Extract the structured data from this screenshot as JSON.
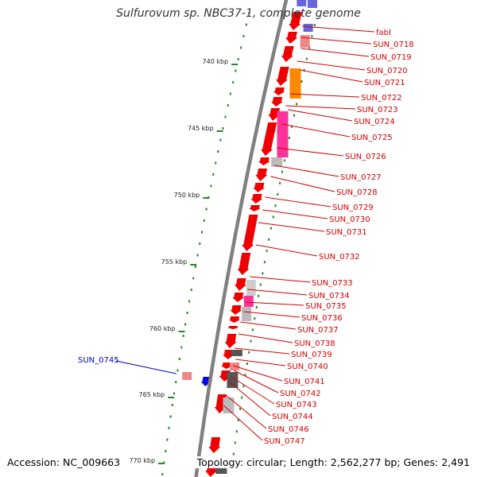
{
  "title": "Sulfurovum sp. NBC37-1, complete genome",
  "accession": "Accession: NC_009663",
  "footer": "Topology: circular; Length: 2,562,277 bp; Genes: 2,491",
  "colors": {
    "backbone": "#808080",
    "cds": "#ee0000",
    "label_red": "#d40000",
    "label_blue": "#0000cc",
    "tick": "#228822",
    "dot": "#228822"
  },
  "kbp_ticks": [
    {
      "label": "740 kbp"
    },
    {
      "label": "745 kbp"
    },
    {
      "label": "750 kbp"
    },
    {
      "label": "755 kbp"
    },
    {
      "label": "760 kbp"
    },
    {
      "label": "765 kbp"
    },
    {
      "label": "770 kbp"
    }
  ],
  "gene_labels": [
    {
      "name": "fabI",
      "color": "red"
    },
    {
      "name": "SUN_0718",
      "color": "red"
    },
    {
      "name": "SUN_0719",
      "color": "red"
    },
    {
      "name": "SUN_0720",
      "color": "red"
    },
    {
      "name": "SUN_0721",
      "color": "red"
    },
    {
      "name": "SUN_0722",
      "color": "red"
    },
    {
      "name": "SUN_0723",
      "color": "red"
    },
    {
      "name": "SUN_0724",
      "color": "red"
    },
    {
      "name": "SUN_0725",
      "color": "red"
    },
    {
      "name": "SUN_0726",
      "color": "red"
    },
    {
      "name": "SUN_0727",
      "color": "red"
    },
    {
      "name": "SUN_0728",
      "color": "red"
    },
    {
      "name": "SUN_0729",
      "color": "red"
    },
    {
      "name": "SUN_0730",
      "color": "red"
    },
    {
      "name": "SUN_0731",
      "color": "red"
    },
    {
      "name": "SUN_0732",
      "color": "red"
    },
    {
      "name": "SUN_0733",
      "color": "red"
    },
    {
      "name": "SUN_0734",
      "color": "red"
    },
    {
      "name": "SUN_0735",
      "color": "red"
    },
    {
      "name": "SUN_0736",
      "color": "red"
    },
    {
      "name": "SUN_0737",
      "color": "red"
    },
    {
      "name": "SUN_0738",
      "color": "red"
    },
    {
      "name": "SUN_0739",
      "color": "red"
    },
    {
      "name": "SUN_0740",
      "color": "red"
    },
    {
      "name": "SUN_0741",
      "color": "red"
    },
    {
      "name": "SUN_0742",
      "color": "red"
    },
    {
      "name": "SUN_0743",
      "color": "red"
    },
    {
      "name": "SUN_0744",
      "color": "red"
    },
    {
      "name": "SUN_0746",
      "color": "red"
    },
    {
      "name": "SUN_0747",
      "color": "red"
    },
    {
      "name": "SUN_0745",
      "color": "blue"
    }
  ]
}
